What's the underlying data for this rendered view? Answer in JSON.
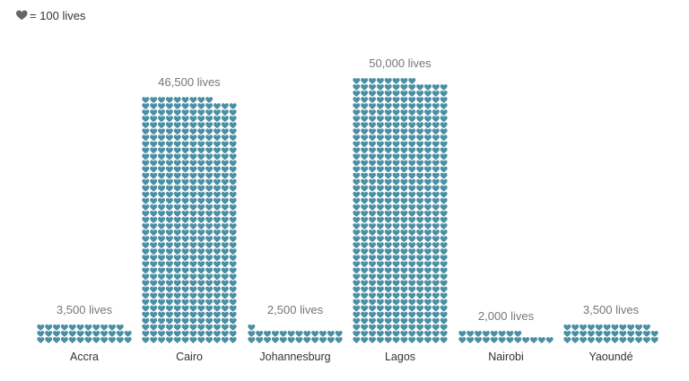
{
  "legend": {
    "text": "= 100 lives",
    "icon": "heart-icon",
    "unit_value": 100
  },
  "colors": {
    "heart": "#4a8fa3",
    "legend_heart": "#666666",
    "value_label": "#777777",
    "city_label": "#333333"
  },
  "chart_data": {
    "type": "bar",
    "encoding": "isotype-hearts",
    "unit_per_icon": 100,
    "categories": [
      "Accra",
      "Cairo",
      "Johannesburg",
      "Lagos",
      "Nairobi",
      "Yaoundé"
    ],
    "values": [
      3500,
      46500,
      2500,
      50000,
      2000,
      3500
    ],
    "value_labels": [
      "3,500 lives",
      "46,500 lives",
      "2,500 lives",
      "50,000 lives",
      "2,000 lives",
      "3,500 lives"
    ],
    "title": "",
    "xlabel": "",
    "ylabel": ""
  }
}
